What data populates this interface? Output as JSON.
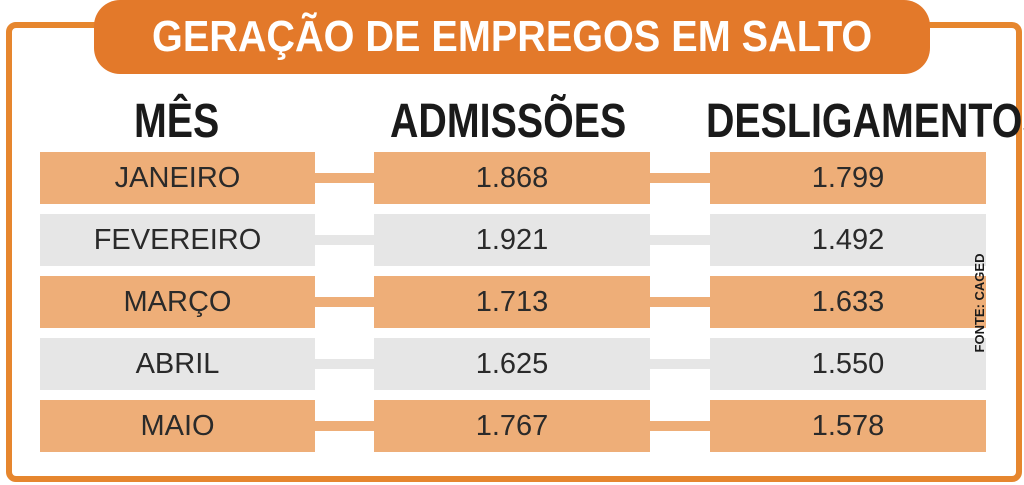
{
  "title": "GERAÇÃO DE EMPREGOS EM SALTO",
  "source": "FONTE: CAGED",
  "colors": {
    "accent": "#e3792a",
    "row_orange": "#eeae78",
    "row_gray": "#e6e6e6",
    "frame": "#e6862e"
  },
  "chart_data": {
    "type": "table",
    "title": "GERAÇÃO DE EMPREGOS EM SALTO",
    "columns": [
      "MÊS",
      "ADMISSÕES",
      "DESLIGAMENTOS"
    ],
    "rows": [
      {
        "month": "JANEIRO",
        "admissoes": "1.868",
        "desligamentos": "1.799"
      },
      {
        "month": "FEVEREIRO",
        "admissoes": "1.921",
        "desligamentos": "1.492"
      },
      {
        "month": "MARÇO",
        "admissoes": "1.713",
        "desligamentos": "1.633"
      },
      {
        "month": "ABRIL",
        "admissoes": "1.625",
        "desligamentos": "1.550"
      },
      {
        "month": "MAIO",
        "admissoes": "1.767",
        "desligamentos": "1.578"
      }
    ],
    "values": {
      "admissoes": [
        1868,
        1921,
        1713,
        1625,
        1767
      ],
      "desligamentos": [
        1799,
        1492,
        1633,
        1550,
        1578
      ]
    },
    "row_style": [
      "orange",
      "gray",
      "orange",
      "gray",
      "orange"
    ]
  }
}
